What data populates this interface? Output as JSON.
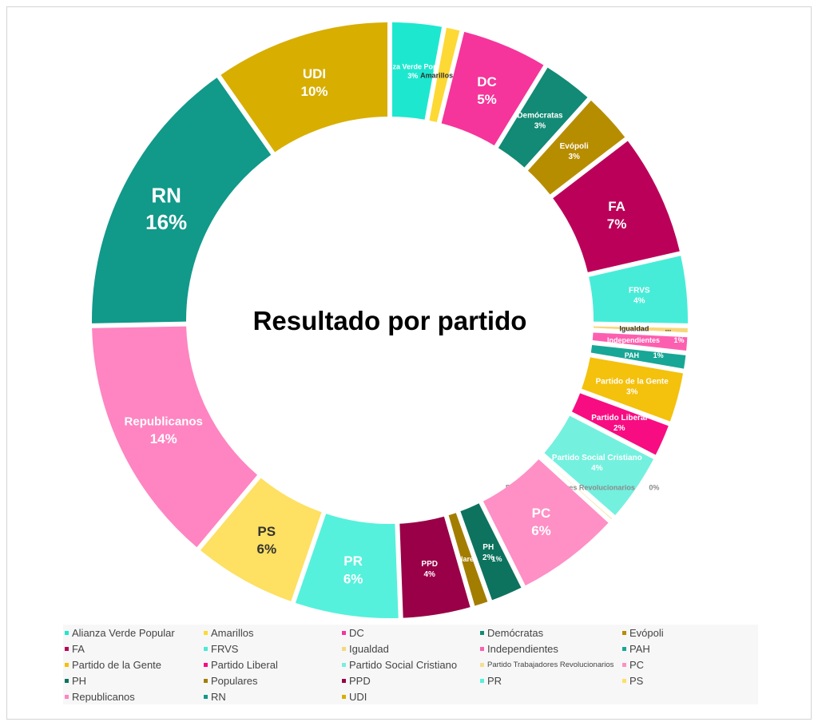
{
  "chart_data": {
    "type": "pie",
    "donut": true,
    "title": "Resultado por partido",
    "legend_position": "bottom",
    "slices": [
      {
        "name": "Alianza Verde Popular",
        "label": "Alianza Verde Popular",
        "value": 3,
        "pct_label": "3%",
        "color": "#1de8cf"
      },
      {
        "name": "Amarillos",
        "label": "Amarillos",
        "value": 1,
        "pct_label": "1%",
        "color": "#fdd935"
      },
      {
        "name": "DC",
        "label": "DC",
        "value": 5,
        "pct_label": "5%",
        "color": "#f5359b"
      },
      {
        "name": "Demócratas",
        "label": "Demócratas",
        "value": 3,
        "pct_label": "3%",
        "color": "#128a75"
      },
      {
        "name": "Evópoli",
        "label": "Evópoli",
        "value": 3,
        "pct_label": "3%",
        "color": "#b78d00"
      },
      {
        "name": "FA",
        "label": "FA",
        "value": 7,
        "pct_label": "7%",
        "color": "#bb0059"
      },
      {
        "name": "FRVS",
        "label": "FRVS",
        "value": 4,
        "pct_label": "4%",
        "color": "#47ecd8"
      },
      {
        "name": "Igualdad",
        "label": "Igualdad",
        "value": 0.5,
        "pct_label": "...",
        "color": "#f8d77a"
      },
      {
        "name": "Independientes",
        "label": "Independientes",
        "value": 1,
        "pct_label": "1%",
        "color": "#fd5fb0"
      },
      {
        "name": "PAH",
        "label": "PAH",
        "value": 1,
        "pct_label": "1%",
        "color": "#18a796"
      },
      {
        "name": "Partido de la Gente",
        "label": "Partido de la Gente",
        "value": 3,
        "pct_label": "3%",
        "color": "#f4c10c"
      },
      {
        "name": "Partido Liberal",
        "label": "Partido Liberal",
        "value": 2,
        "pct_label": "2%",
        "color": "#f80c82"
      },
      {
        "name": "Partido Social Cristiano",
        "label": "Partido Social Cristiano",
        "value": 4,
        "pct_label": "4%",
        "color": "#74f0df"
      },
      {
        "name": "Partido Trabajadores Revolucionarios",
        "label": "Partido Trabajadores Revolucionarios",
        "value": 0.3,
        "pct_label": "0%",
        "color": "#f5de95"
      },
      {
        "name": "PC",
        "label": "PC",
        "value": 6,
        "pct_label": "6%",
        "color": "#fe90c5"
      },
      {
        "name": "PH",
        "label": "PH",
        "value": 2,
        "pct_label": "2%",
        "color": "#0d735f"
      },
      {
        "name": "Populares",
        "label": "Populares",
        "value": 1,
        "pct_label": "1%",
        "color": "#a37d00"
      },
      {
        "name": "PPD",
        "label": "PPD",
        "value": 4,
        "pct_label": "4%",
        "color": "#990047"
      },
      {
        "name": "PR",
        "label": "PR",
        "value": 6,
        "pct_label": "6%",
        "color": "#55f1dc"
      },
      {
        "name": "PS",
        "label": "PS",
        "value": 6,
        "pct_label": "6%",
        "color": "#fee062"
      },
      {
        "name": "Republicanos",
        "label": "Republicanos",
        "value": 14,
        "pct_label": "14%",
        "color": "#fe85c1"
      },
      {
        "name": "RN",
        "label": "RN",
        "value": 16,
        "pct_label": "16%",
        "color": "#11998a"
      },
      {
        "name": "UDI",
        "label": "UDI",
        "value": 10,
        "pct_label": "10%",
        "color": "#d8ae00"
      }
    ]
  }
}
